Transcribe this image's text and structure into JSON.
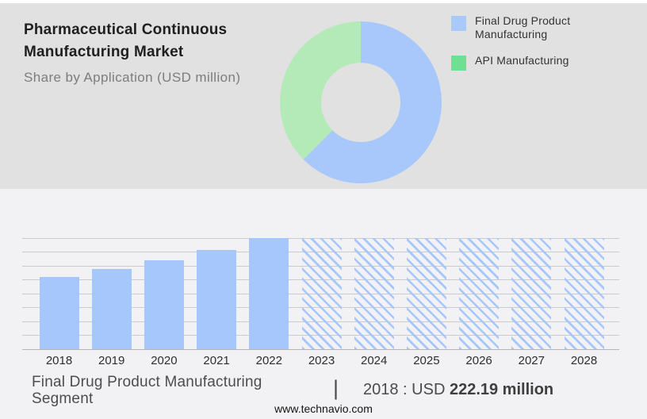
{
  "page": {
    "top_panel_bg": "#e1e1e1",
    "bottom_panel_bg": "#f2f2f4",
    "grid_color": "#cbcbcb",
    "axis_color": "#b5b5b5"
  },
  "header": {
    "title_line1": "Pharmaceutical Continuous",
    "title_line2": "Manufacturing Market",
    "subtitle": "Share by Application (USD million)"
  },
  "legend": {
    "items": [
      {
        "label": "Final Drug Product Manufacturing",
        "color": "#a9c9fb"
      },
      {
        "label": "API Manufacturing",
        "color": "#6fe093"
      }
    ]
  },
  "footer": {
    "segment_line1": "Final Drug Product Manufacturing",
    "segment_line2": "Segment",
    "separator": "|",
    "stat_prefix": "2018 : USD ",
    "stat_value": "222.19 million",
    "website": "www.technavio.com"
  },
  "chart_data": [
    {
      "type": "pie",
      "subtype": "donut",
      "title": "Share by Application (USD million)",
      "labels": [
        "Final Drug Product Manufacturing",
        "API Manufacturing"
      ],
      "values_pct": [
        62.5,
        37.5
      ],
      "colors": [
        "#a8c8fb",
        "#b4eab7"
      ],
      "legend_position": "right",
      "inner_radius_ratio": 0.49,
      "start_angle_deg": 0,
      "direction": "clockwise"
    },
    {
      "type": "bar",
      "title": "Final Drug Product Manufacturing Segment",
      "categories": [
        "2018",
        "2019",
        "2020",
        "2021",
        "2022",
        "2023",
        "2024",
        "2025",
        "2026",
        "2027",
        "2028"
      ],
      "series": [
        {
          "name": "Final Drug Product Manufacturing Segment",
          "values_usd_million_est": [
            222.19,
            246.8,
            273.5,
            305.2,
            341.9,
            null,
            null,
            null,
            null,
            null,
            null
          ],
          "height_frac": [
            0.65,
            0.72,
            0.8,
            0.893,
            1.0,
            1.0,
            1.0,
            1.0,
            1.0,
            1.0,
            1.0
          ]
        }
      ],
      "forecast_categories": [
        "2023",
        "2024",
        "2025",
        "2026",
        "2027",
        "2028"
      ],
      "forecast_style": "diagonal-hatch",
      "bar_color": "#a6c7fb",
      "gridline_count": 9,
      "y_axis_labels_visible": false,
      "xlabel": "",
      "ylabel": "",
      "annotation": "2018 : USD 222.19 million"
    }
  ]
}
